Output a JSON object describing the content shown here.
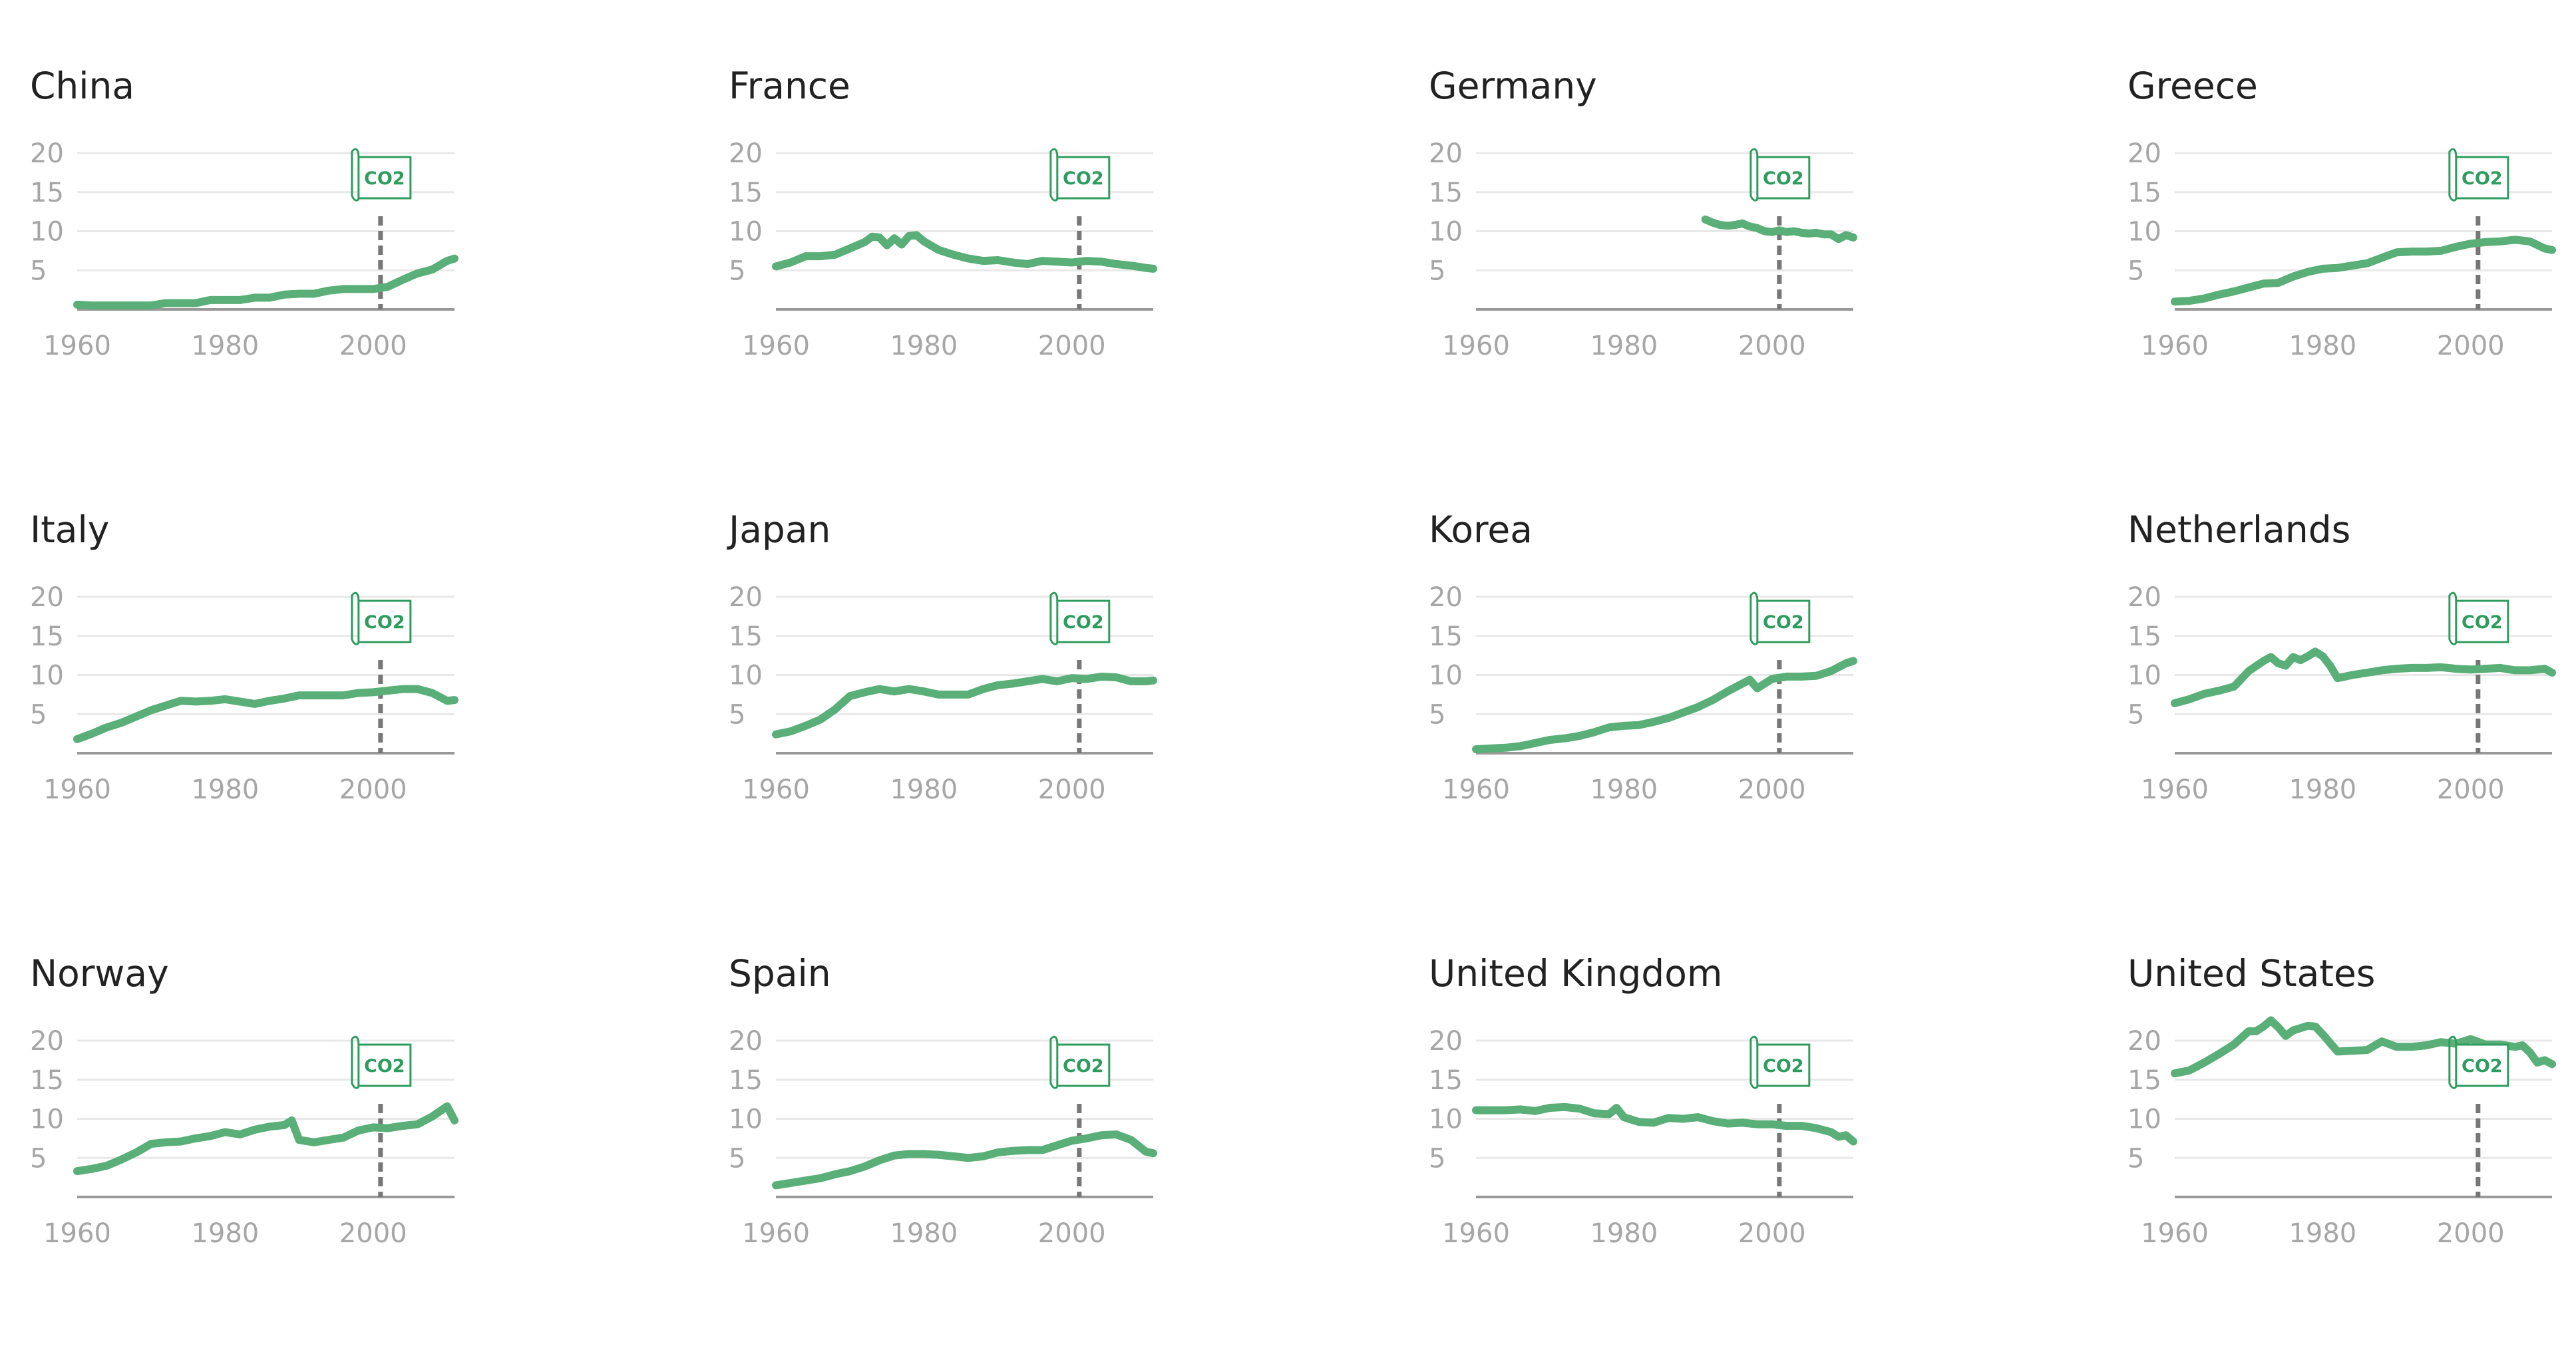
{
  "marker": {
    "label": "CO2",
    "year": 2001
  },
  "colors": {
    "line": "#5aaf78",
    "grid": "#e8e8e8",
    "axis": "#999999",
    "tick": "#a6a6a6",
    "marker": "#2e9c5e",
    "dash": "#777777"
  },
  "chart_data": [
    {
      "type": "line",
      "title": "China",
      "xlim": [
        1960,
        2011
      ],
      "ylim": [
        0,
        20
      ],
      "y_ticks": [
        5,
        10,
        15,
        20
      ],
      "x_ticks": [
        1960,
        1980,
        2000
      ],
      "x": [
        1960,
        1962,
        1964,
        1966,
        1968,
        1970,
        1972,
        1974,
        1976,
        1978,
        1980,
        1982,
        1984,
        1986,
        1988,
        1990,
        1992,
        1994,
        1996,
        1998,
        2000,
        2002,
        2004,
        2006,
        2008,
        2010,
        2011
      ],
      "y": [
        0.6,
        0.5,
        0.5,
        0.5,
        0.5,
        0.5,
        0.8,
        0.8,
        0.8,
        1.2,
        1.2,
        1.2,
        1.5,
        1.5,
        1.9,
        2.0,
        2.0,
        2.4,
        2.6,
        2.6,
        2.6,
        2.9,
        3.8,
        4.6,
        5.1,
        6.2,
        6.5
      ]
    },
    {
      "type": "line",
      "title": "France",
      "xlim": [
        1960,
        2011
      ],
      "ylim": [
        0,
        20
      ],
      "y_ticks": [
        5,
        10,
        15,
        20
      ],
      "x_ticks": [
        1960,
        1980,
        2000
      ],
      "x": [
        1960,
        1962,
        1964,
        1966,
        1968,
        1970,
        1972,
        1973,
        1974,
        1975,
        1976,
        1977,
        1978,
        1979,
        1980,
        1982,
        1984,
        1986,
        1988,
        1990,
        1992,
        1994,
        1996,
        1998,
        2000,
        2002,
        2004,
        2006,
        2008,
        2010,
        2011
      ],
      "y": [
        5.5,
        6.0,
        6.8,
        6.8,
        7.0,
        7.8,
        8.6,
        9.3,
        9.2,
        8.2,
        9.1,
        8.3,
        9.4,
        9.5,
        8.7,
        7.6,
        7.0,
        6.5,
        6.2,
        6.3,
        6.0,
        5.8,
        6.2,
        6.1,
        6.0,
        6.2,
        6.1,
        5.8,
        5.6,
        5.3,
        5.2
      ]
    },
    {
      "type": "line",
      "title": "Germany",
      "xlim": [
        1960,
        2011
      ],
      "ylim": [
        0,
        20
      ],
      "y_ticks": [
        5,
        10,
        15,
        20
      ],
      "x_ticks": [
        1960,
        1980,
        2000
      ],
      "x": [
        1991,
        1992,
        1993,
        1994,
        1995,
        1996,
        1997,
        1998,
        1999,
        2000,
        2001,
        2002,
        2003,
        2004,
        2005,
        2006,
        2007,
        2008,
        2009,
        2010,
        2011
      ],
      "y": [
        11.5,
        11.1,
        10.8,
        10.7,
        10.8,
        11.0,
        10.6,
        10.4,
        10.0,
        9.9,
        10.1,
        9.9,
        10.0,
        9.8,
        9.7,
        9.8,
        9.6,
        9.6,
        9.0,
        9.5,
        9.2
      ]
    },
    {
      "type": "line",
      "title": "Greece",
      "xlim": [
        1960,
        2011
      ],
      "ylim": [
        0,
        20
      ],
      "y_ticks": [
        5,
        10,
        15,
        20
      ],
      "x_ticks": [
        1960,
        1980,
        2000
      ],
      "x": [
        1960,
        1962,
        1964,
        1966,
        1968,
        1970,
        1972,
        1974,
        1976,
        1978,
        1980,
        1982,
        1984,
        1986,
        1988,
        1990,
        1992,
        1994,
        1996,
        1998,
        2000,
        2002,
        2004,
        2006,
        2008,
        2010,
        2011
      ],
      "y": [
        1.0,
        1.1,
        1.4,
        1.9,
        2.3,
        2.8,
        3.3,
        3.4,
        4.2,
        4.8,
        5.2,
        5.3,
        5.6,
        5.9,
        6.6,
        7.3,
        7.4,
        7.4,
        7.5,
        8.0,
        8.4,
        8.6,
        8.7,
        8.9,
        8.7,
        7.8,
        7.6
      ]
    },
    {
      "type": "line",
      "title": "Italy",
      "xlim": [
        1960,
        2011
      ],
      "ylim": [
        0,
        20
      ],
      "y_ticks": [
        5,
        10,
        15,
        20
      ],
      "x_ticks": [
        1960,
        1980,
        2000
      ],
      "x": [
        1960,
        1962,
        1964,
        1966,
        1968,
        1970,
        1972,
        1974,
        1976,
        1978,
        1980,
        1982,
        1984,
        1986,
        1988,
        1990,
        1992,
        1994,
        1996,
        1998,
        2000,
        2002,
        2004,
        2006,
        2008,
        2010,
        2011
      ],
      "y": [
        1.8,
        2.5,
        3.3,
        3.9,
        4.7,
        5.5,
        6.1,
        6.7,
        6.6,
        6.7,
        6.9,
        6.6,
        6.3,
        6.7,
        7.0,
        7.4,
        7.4,
        7.4,
        7.4,
        7.7,
        7.8,
        8.0,
        8.2,
        8.2,
        7.7,
        6.7,
        6.8
      ]
    },
    {
      "type": "line",
      "title": "Japan",
      "xlim": [
        1960,
        2011
      ],
      "ylim": [
        0,
        20
      ],
      "y_ticks": [
        5,
        10,
        15,
        20
      ],
      "x_ticks": [
        1960,
        1980,
        2000
      ],
      "x": [
        1960,
        1962,
        1964,
        1966,
        1968,
        1970,
        1972,
        1974,
        1976,
        1978,
        1980,
        1982,
        1984,
        1986,
        1988,
        1990,
        1992,
        1994,
        1996,
        1998,
        2000,
        2002,
        2004,
        2006,
        2008,
        2010,
        2011
      ],
      "y": [
        2.4,
        2.8,
        3.5,
        4.3,
        5.6,
        7.3,
        7.8,
        8.2,
        7.9,
        8.2,
        7.9,
        7.5,
        7.5,
        7.5,
        8.2,
        8.7,
        8.9,
        9.2,
        9.5,
        9.2,
        9.6,
        9.5,
        9.8,
        9.7,
        9.2,
        9.2,
        9.3
      ]
    },
    {
      "type": "line",
      "title": "Korea",
      "xlim": [
        1960,
        2011
      ],
      "ylim": [
        0,
        20
      ],
      "y_ticks": [
        5,
        10,
        15,
        20
      ],
      "x_ticks": [
        1960,
        1980,
        2000
      ],
      "x": [
        1960,
        1962,
        1964,
        1966,
        1968,
        1970,
        1972,
        1974,
        1976,
        1978,
        1980,
        1982,
        1984,
        1986,
        1988,
        1990,
        1992,
        1994,
        1996,
        1997,
        1998,
        2000,
        2002,
        2004,
        2006,
        2008,
        2010,
        2011
      ],
      "y": [
        0.5,
        0.6,
        0.7,
        0.9,
        1.3,
        1.7,
        1.9,
        2.2,
        2.7,
        3.3,
        3.5,
        3.6,
        4.0,
        4.5,
        5.2,
        5.9,
        6.8,
        7.9,
        8.9,
        9.4,
        8.3,
        9.5,
        9.8,
        9.8,
        9.9,
        10.5,
        11.5,
        11.8
      ]
    },
    {
      "type": "line",
      "title": "Netherlands",
      "xlim": [
        1960,
        2011
      ],
      "ylim": [
        0,
        20
      ],
      "y_ticks": [
        5,
        10,
        15,
        20
      ],
      "x_ticks": [
        1960,
        1980,
        2000
      ],
      "x": [
        1960,
        1962,
        1964,
        1966,
        1968,
        1970,
        1972,
        1973,
        1974,
        1975,
        1976,
        1977,
        1978,
        1979,
        1980,
        1981,
        1982,
        1984,
        1986,
        1988,
        1990,
        1992,
        1994,
        1996,
        1998,
        2000,
        2002,
        2004,
        2006,
        2008,
        2010,
        2011
      ],
      "y": [
        6.4,
        6.9,
        7.6,
        8.0,
        8.5,
        10.5,
        11.8,
        12.3,
        11.5,
        11.2,
        12.3,
        11.9,
        12.4,
        13.0,
        12.4,
        11.2,
        9.6,
        10.0,
        10.3,
        10.6,
        10.8,
        10.9,
        10.9,
        11.0,
        10.8,
        10.7,
        10.8,
        10.9,
        10.6,
        10.6,
        10.8,
        10.3
      ]
    },
    {
      "type": "line",
      "title": "Norway",
      "xlim": [
        1960,
        2011
      ],
      "ylim": [
        0,
        20
      ],
      "y_ticks": [
        5,
        10,
        15,
        20
      ],
      "x_ticks": [
        1960,
        1980,
        2000
      ],
      "x": [
        1960,
        1962,
        1964,
        1966,
        1968,
        1970,
        1972,
        1974,
        1976,
        1978,
        1980,
        1982,
        1984,
        1986,
        1988,
        1989,
        1990,
        1992,
        1994,
        1996,
        1998,
        2000,
        2002,
        2004,
        2006,
        2008,
        2010,
        2011
      ],
      "y": [
        3.3,
        3.6,
        4.0,
        4.8,
        5.7,
        6.8,
        7.0,
        7.1,
        7.5,
        7.8,
        8.3,
        8.0,
        8.6,
        9.0,
        9.2,
        9.8,
        7.3,
        7.0,
        7.3,
        7.6,
        8.5,
        8.9,
        8.8,
        9.1,
        9.3,
        10.3,
        11.6,
        9.8
      ]
    },
    {
      "type": "line",
      "title": "Spain",
      "xlim": [
        1960,
        2011
      ],
      "ylim": [
        0,
        20
      ],
      "y_ticks": [
        5,
        10,
        15,
        20
      ],
      "x_ticks": [
        1960,
        1980,
        2000
      ],
      "x": [
        1960,
        1962,
        1964,
        1966,
        1968,
        1970,
        1972,
        1974,
        1976,
        1978,
        1980,
        1982,
        1984,
        1986,
        1988,
        1990,
        1992,
        1994,
        1996,
        1998,
        2000,
        2002,
        2004,
        2006,
        2008,
        2010,
        2011
      ],
      "y": [
        1.5,
        1.8,
        2.1,
        2.4,
        2.9,
        3.3,
        3.9,
        4.7,
        5.3,
        5.5,
        5.5,
        5.4,
        5.2,
        5.0,
        5.2,
        5.7,
        5.9,
        6.0,
        6.0,
        6.6,
        7.2,
        7.5,
        7.9,
        8.0,
        7.3,
        5.8,
        5.6
      ]
    },
    {
      "type": "line",
      "title": "United Kingdom",
      "xlim": [
        1960,
        2011
      ],
      "ylim": [
        0,
        20
      ],
      "y_ticks": [
        5,
        10,
        15,
        20
      ],
      "x_ticks": [
        1960,
        1980,
        2000
      ],
      "x": [
        1960,
        1962,
        1964,
        1966,
        1968,
        1970,
        1972,
        1974,
        1976,
        1978,
        1979,
        1980,
        1982,
        1984,
        1986,
        1988,
        1990,
        1992,
        1994,
        1996,
        1998,
        2000,
        2002,
        2004,
        2006,
        2008,
        2009,
        2010,
        2011
      ],
      "y": [
        11.1,
        11.1,
        11.1,
        11.2,
        11.0,
        11.4,
        11.5,
        11.3,
        10.7,
        10.6,
        11.4,
        10.2,
        9.6,
        9.5,
        10.1,
        10.0,
        10.2,
        9.7,
        9.4,
        9.5,
        9.3,
        9.3,
        9.1,
        9.1,
        8.8,
        8.3,
        7.7,
        7.9,
        7.1
      ]
    },
    {
      "type": "line",
      "title": "United States",
      "xlim": [
        1960,
        2011
      ],
      "ylim": [
        0,
        20
      ],
      "y_ticks": [
        5,
        10,
        15,
        20
      ],
      "x_ticks": [
        1960,
        1980,
        2000
      ],
      "x": [
        1960,
        1962,
        1964,
        1966,
        1968,
        1970,
        1971,
        1972,
        1973,
        1974,
        1975,
        1976,
        1978,
        1979,
        1980,
        1982,
        1984,
        1986,
        1988,
        1990,
        1992,
        1994,
        1996,
        1998,
        2000,
        2002,
        2004,
        2006,
        2007,
        2008,
        2009,
        2010,
        2011
      ],
      "y": [
        15.8,
        16.2,
        17.2,
        18.3,
        19.5,
        21.2,
        21.2,
        21.8,
        22.6,
        21.7,
        20.6,
        21.3,
        21.9,
        21.8,
        20.8,
        18.6,
        18.7,
        18.8,
        19.9,
        19.2,
        19.2,
        19.4,
        19.8,
        19.6,
        20.2,
        19.5,
        19.5,
        19.2,
        19.4,
        18.5,
        17.2,
        17.5,
        17.0
      ]
    }
  ]
}
